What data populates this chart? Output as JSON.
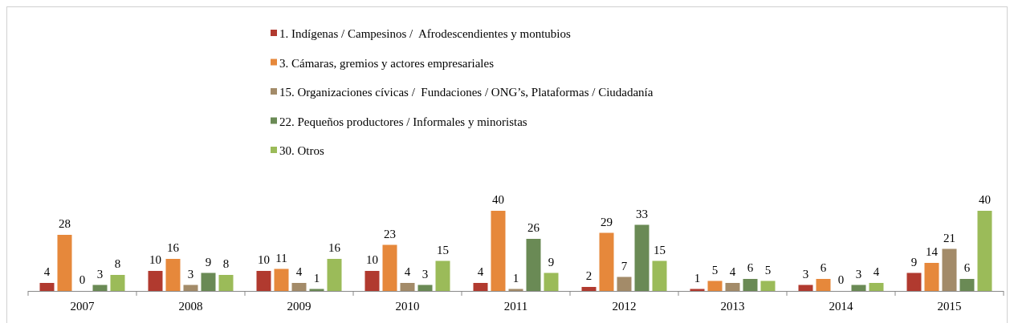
{
  "chart_data": {
    "type": "bar",
    "categories": [
      "2007",
      "2008",
      "2009",
      "2010",
      "2011",
      "2012",
      "2013",
      "2014",
      "2015"
    ],
    "series": [
      {
        "name": "1. Indígenas / Campesinos /  Afrodescendientes y montubios",
        "color": "#b13a2f",
        "values": [
          4,
          10,
          10,
          10,
          4,
          2,
          1,
          3,
          9
        ]
      },
      {
        "name": "3. Cámaras, gremios y actores empresariales",
        "color": "#e6883b",
        "values": [
          28,
          16,
          11,
          23,
          40,
          29,
          5,
          6,
          14
        ]
      },
      {
        "name": "15. Organizaciones cívicas /  Fundaciones / ONG’s, Plataformas / Ciudadanía",
        "color": "#a38b69",
        "values": [
          0,
          3,
          4,
          4,
          1,
          7,
          4,
          0,
          21
        ]
      },
      {
        "name": "22. Pequeños productores / Informales y minoristas",
        "color": "#6a8a55",
        "values": [
          3,
          9,
          1,
          3,
          26,
          33,
          6,
          3,
          6
        ]
      },
      {
        "name": "30. Otros",
        "color": "#9bbb59",
        "values": [
          8,
          8,
          16,
          15,
          9,
          15,
          5,
          4,
          40
        ]
      }
    ],
    "data_labels": true,
    "legend": "top"
  }
}
